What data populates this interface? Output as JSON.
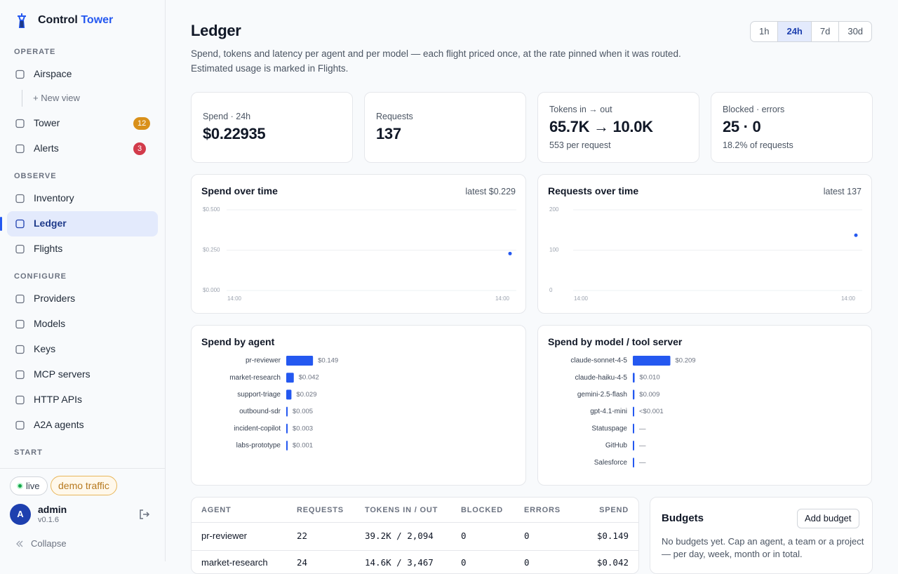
{
  "sidebar": {
    "brand": [
      "Control",
      "Tower"
    ],
    "sections": [
      {
        "label": "OPERATE",
        "items": [
          {
            "label": "Airspace"
          },
          {
            "label": "+ New view",
            "sub": true
          },
          {
            "label": "Tower",
            "badge": 12,
            "badge_color": "#d9901a"
          },
          {
            "label": "Alerts",
            "badge": 3,
            "badge_color": "#d23b4b"
          }
        ]
      },
      {
        "label": "OBSERVE",
        "items": [
          {
            "label": "Inventory"
          },
          {
            "label": "Ledger",
            "active": true
          },
          {
            "label": "Flights"
          }
        ]
      },
      {
        "label": "CONFIGURE",
        "items": [
          {
            "label": "Providers"
          },
          {
            "label": "Models"
          },
          {
            "label": "Keys"
          },
          {
            "label": "MCP servers"
          },
          {
            "label": "HTTP APIs"
          },
          {
            "label": "A2A agents"
          }
        ]
      },
      {
        "label": "START",
        "items": []
      }
    ],
    "status": "live",
    "demo": "demo traffic",
    "user": {
      "avatar": "A",
      "name": "admin",
      "version": "v0.1.6"
    },
    "collapse": "Collapse"
  },
  "header": {
    "title": "Ledger",
    "description": "Spend, tokens and latency per agent and per model — each flight priced once, at the rate pinned when it was routed. Estimated usage is marked in Flights.",
    "ranges": [
      "1h",
      "24h",
      "7d",
      "30d"
    ],
    "active_range": 1
  },
  "stats": [
    {
      "label": "Spend · 24h",
      "value": "$0.22935"
    },
    {
      "label": "Requests",
      "value": "137"
    },
    {
      "label": "Tokens in → out",
      "value": "65.7K → 10.0K",
      "sub": "553 per request"
    },
    {
      "label": "Blocked · errors",
      "value": "25 · 0",
      "sub": "18.2% of requests"
    }
  ],
  "chart_data": [
    {
      "type": "line",
      "title": "Spend over time",
      "subtitle": "latest $0.229",
      "color": "#2458f0",
      "ylim": [
        0,
        0.5
      ],
      "yticks": [
        {
          "value": 0,
          "label": "$0.000"
        },
        {
          "value": 0.25,
          "label": "$0.250"
        },
        {
          "value": 0.5,
          "label": "$0.500"
        }
      ],
      "x_labels": [
        "14:00",
        "14:00"
      ],
      "values": [
        0.229
      ],
      "grid": true
    },
    {
      "type": "line",
      "title": "Requests over time",
      "subtitle": "latest 137",
      "color": "#2458f0",
      "ylim": [
        0,
        200
      ],
      "yticks": [
        0,
        100,
        200
      ],
      "x_labels": [
        "14:00",
        "14:00"
      ],
      "values": [
        137
      ],
      "grid": true
    },
    {
      "type": "hbar",
      "title": "Spend by agent",
      "color": "#2458f0",
      "categories": [
        "pr-reviewer",
        "market-research",
        "support-triage",
        "outbound-sdr",
        "incident-copilot",
        "labs-prototype"
      ],
      "values": [
        0.149,
        0.042,
        0.029,
        0.005,
        0.003,
        0.001
      ],
      "value_labels": [
        "$0.149",
        "$0.042",
        "$0.029",
        "$0.005",
        "$0.003",
        "$0.001"
      ]
    },
    {
      "type": "hbar",
      "title": "Spend by model / tool server",
      "color": "#2458f0",
      "categories": [
        "claude-sonnet-4-5",
        "claude-haiku-4-5",
        "gemini-2.5-flash",
        "gpt-4.1-mini",
        "Statuspage",
        "GitHub",
        "Salesforce"
      ],
      "values": [
        0.209,
        0.01,
        0.009,
        0.0004,
        null,
        null,
        null
      ],
      "value_labels": [
        "$0.209",
        "$0.010",
        "$0.009",
        "<$0.001",
        "—",
        "—",
        "—"
      ]
    }
  ],
  "table": {
    "columns": [
      "AGENT",
      "REQUESTS",
      "TOKENS IN / OUT",
      "BLOCKED",
      "ERRORS",
      "SPEND"
    ],
    "rows": [
      [
        "pr-reviewer",
        22,
        "39.2K / 2,094",
        0,
        0,
        "$0.149"
      ],
      [
        "market-research",
        24,
        "14.6K / 3,467",
        0,
        0,
        "$0.042"
      ]
    ]
  },
  "budgets": {
    "title": "Budgets",
    "button": "Add budget",
    "text": "No budgets yet. Cap an agent, a team or a project — per day, week, month or in total."
  }
}
